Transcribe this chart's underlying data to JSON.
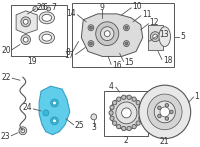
{
  "background_color": "#ffffff",
  "border_color": "#cccccc",
  "highlight_color": "#4fc8e8",
  "line_color": "#555555",
  "text_color": "#333333",
  "title": "",
  "figsize": [
    2.0,
    1.47
  ],
  "dpi": 100
}
